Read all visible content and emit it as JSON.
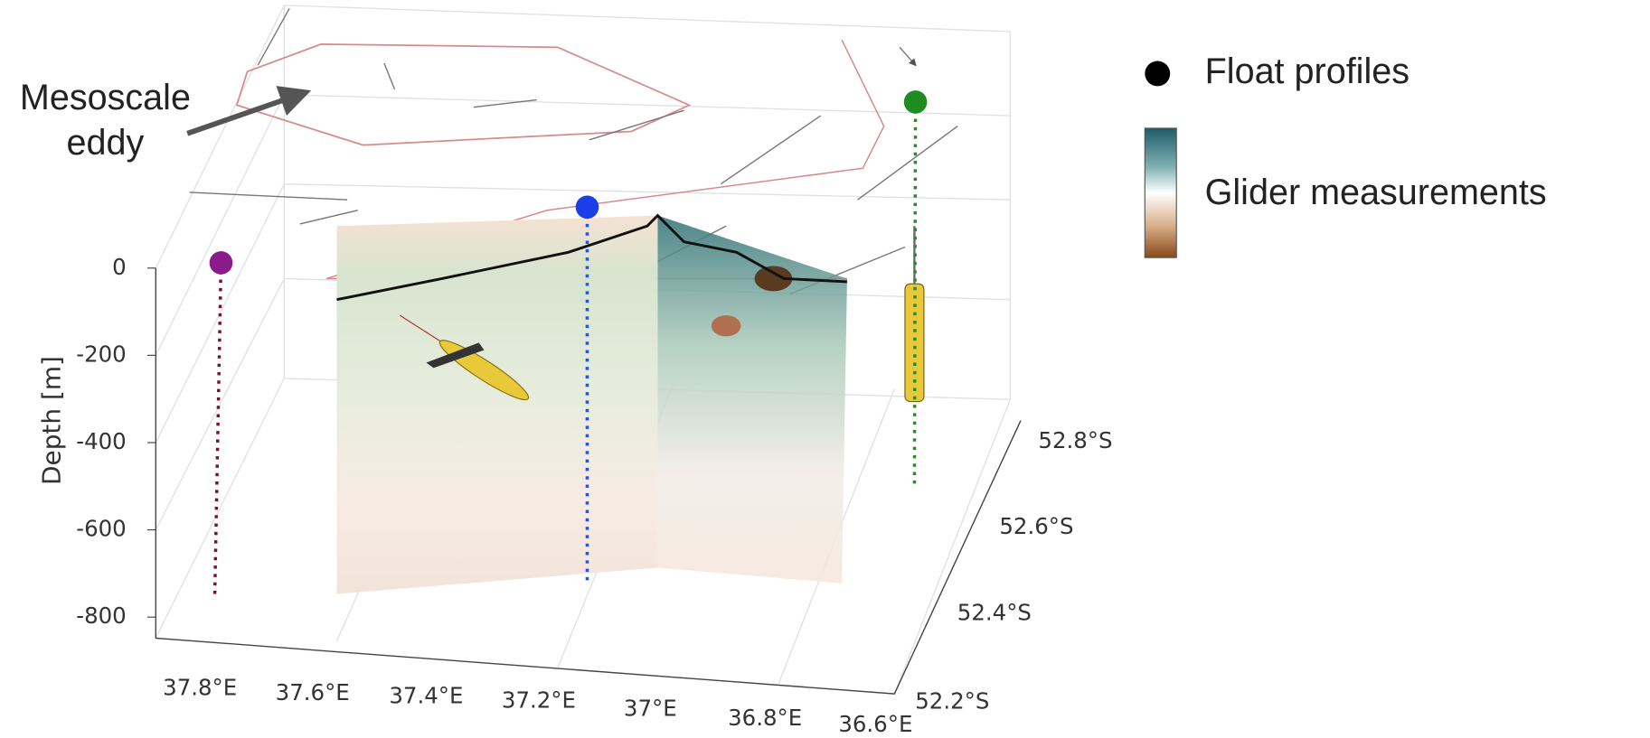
{
  "annotation": {
    "lines": [
      "Mesoscale",
      "eddy"
    ]
  },
  "legend": {
    "float_profiles": "Float profiles",
    "glider_measurements": "Glider measurements"
  },
  "axes": {
    "depth_label": "Depth [m]",
    "depth_ticks": [
      "0",
      "-200",
      "-400",
      "-600",
      "-800"
    ],
    "lon_ticks": [
      "37.8°E",
      "37.6°E",
      "37.4°E",
      "37.2°E",
      "37°E",
      "36.8°E",
      "36.6°E"
    ],
    "lat_ticks": [
      "52.2°S",
      "52.4°S",
      "52.6°S",
      "52.8°S"
    ]
  }
}
